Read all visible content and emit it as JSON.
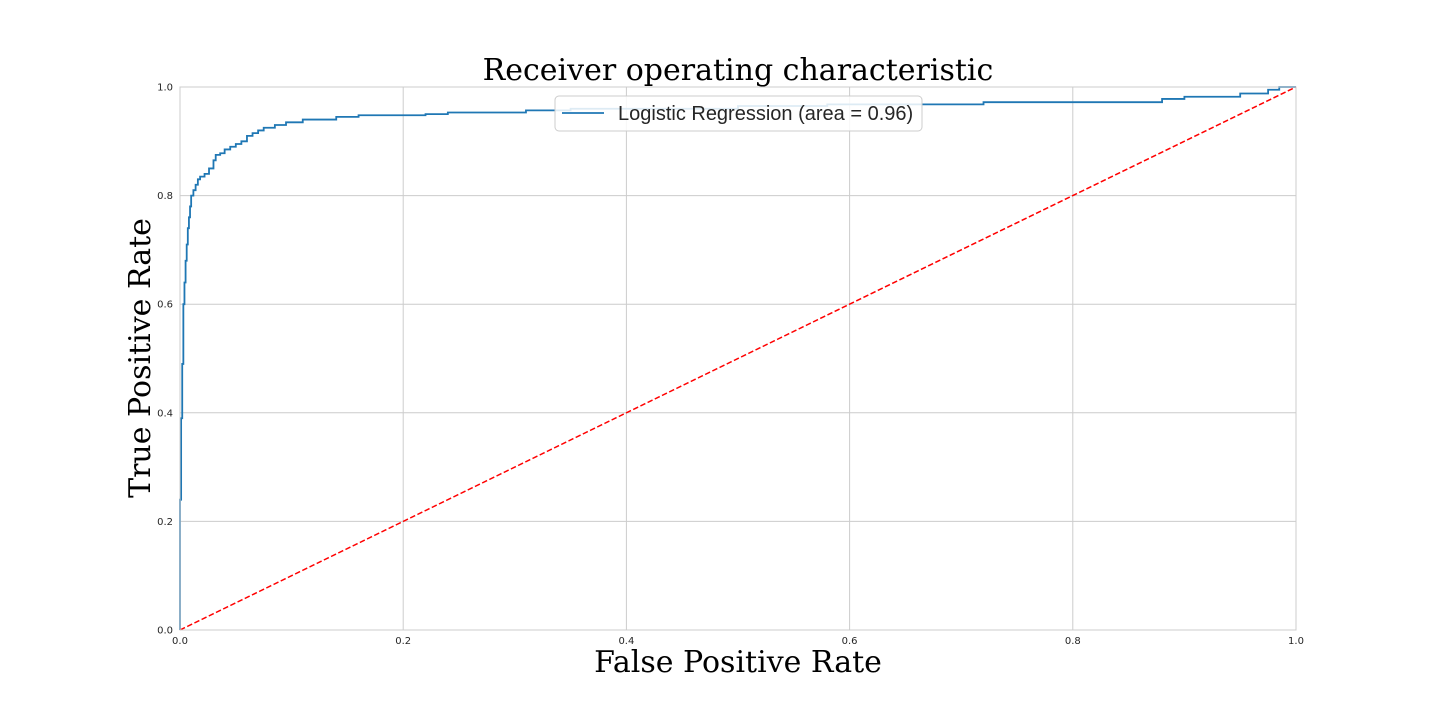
{
  "chart_data": {
    "type": "line",
    "title": "Receiver operating characteristic",
    "xlabel": "False Positive Rate",
    "ylabel": "True Positive Rate",
    "xlim": [
      0.0,
      1.0
    ],
    "ylim": [
      0.0,
      1.0
    ],
    "x_ticks": [
      "0.0",
      "0.2",
      "0.4",
      "0.6",
      "0.8",
      "1.0"
    ],
    "y_ticks": [
      "0.0",
      "0.2",
      "0.4",
      "0.6",
      "0.8",
      "1.0"
    ],
    "grid": true,
    "legend_position": "upper-center",
    "series": [
      {
        "name": "Logistic Regression (area = 0.96)",
        "color": "#1f77b4",
        "style": "step",
        "points": [
          [
            0.0,
            0.0
          ],
          [
            0.0,
            0.24
          ],
          [
            0.001,
            0.39
          ],
          [
            0.002,
            0.49
          ],
          [
            0.003,
            0.6
          ],
          [
            0.004,
            0.64
          ],
          [
            0.005,
            0.68
          ],
          [
            0.006,
            0.71
          ],
          [
            0.007,
            0.74
          ],
          [
            0.008,
            0.76
          ],
          [
            0.009,
            0.78
          ],
          [
            0.01,
            0.8
          ],
          [
            0.012,
            0.81
          ],
          [
            0.014,
            0.82
          ],
          [
            0.016,
            0.83
          ],
          [
            0.018,
            0.835
          ],
          [
            0.022,
            0.84
          ],
          [
            0.026,
            0.85
          ],
          [
            0.03,
            0.865
          ],
          [
            0.032,
            0.875
          ],
          [
            0.036,
            0.878
          ],
          [
            0.04,
            0.885
          ],
          [
            0.045,
            0.89
          ],
          [
            0.05,
            0.895
          ],
          [
            0.055,
            0.9
          ],
          [
            0.06,
            0.91
          ],
          [
            0.065,
            0.915
          ],
          [
            0.07,
            0.92
          ],
          [
            0.075,
            0.925
          ],
          [
            0.085,
            0.93
          ],
          [
            0.095,
            0.935
          ],
          [
            0.11,
            0.94
          ],
          [
            0.14,
            0.945
          ],
          [
            0.16,
            0.948
          ],
          [
            0.22,
            0.95
          ],
          [
            0.24,
            0.953
          ],
          [
            0.31,
            0.957
          ],
          [
            0.35,
            0.96
          ],
          [
            0.5,
            0.965
          ],
          [
            0.58,
            0.968
          ],
          [
            0.72,
            0.972
          ],
          [
            0.88,
            0.978
          ],
          [
            0.9,
            0.982
          ],
          [
            0.95,
            0.988
          ],
          [
            0.975,
            0.995
          ],
          [
            0.985,
            1.0
          ],
          [
            1.0,
            1.0
          ]
        ]
      },
      {
        "name": "",
        "color": "#ff0000",
        "style": "dashed",
        "points": [
          [
            0.0,
            0.0
          ],
          [
            1.0,
            1.0
          ]
        ]
      }
    ]
  }
}
